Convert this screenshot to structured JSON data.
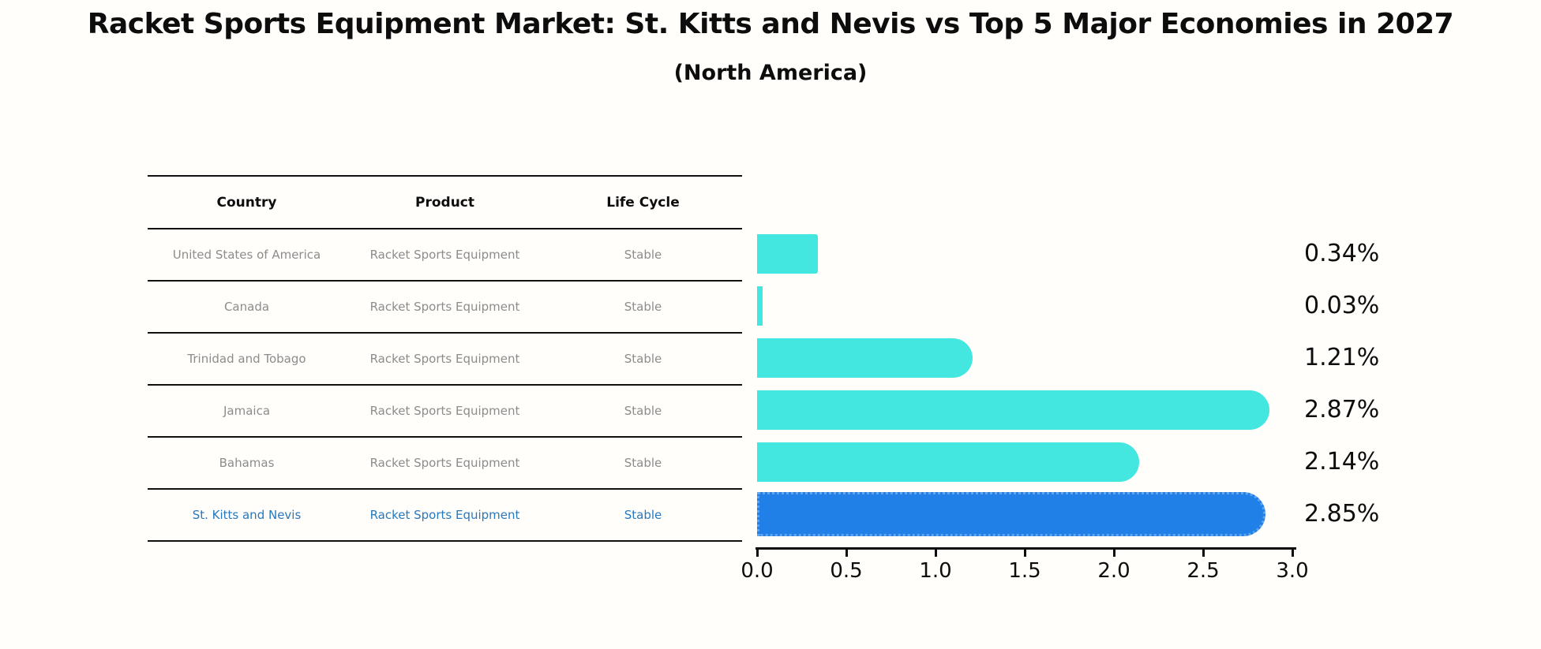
{
  "title": "Racket Sports Equipment Market: St. Kitts and Nevis vs Top 5 Major Economies in 2027",
  "subtitle": "(North America)",
  "table": {
    "headers": [
      "Country",
      "Product",
      "Life Cycle"
    ],
    "rows": [
      {
        "country": "United States of America",
        "product": "Racket Sports Equipment",
        "life_cycle": "Stable",
        "highlighted": false
      },
      {
        "country": "Canada",
        "product": "Racket Sports Equipment",
        "life_cycle": "Stable",
        "highlighted": false
      },
      {
        "country": "Trinidad and Tobago",
        "product": "Racket Sports Equipment",
        "life_cycle": "Stable",
        "highlighted": false
      },
      {
        "country": "Jamaica",
        "product": "Racket Sports Equipment",
        "life_cycle": "Stable",
        "highlighted": false
      },
      {
        "country": "Bahamas",
        "product": "Racket Sports Equipment",
        "life_cycle": "Stable",
        "highlighted": false
      },
      {
        "country": "St. Kitts and Nevis",
        "product": "Racket Sports Equipment",
        "life_cycle": "Stable",
        "highlighted": true
      }
    ]
  },
  "chart_data": {
    "type": "bar",
    "orientation": "horizontal",
    "title": "Racket Sports Equipment Market: St. Kitts and Nevis vs Top 5 Major Economies in 2027 (North America)",
    "categories": [
      "United States of America",
      "Canada",
      "Trinidad and Tobago",
      "Jamaica",
      "Bahamas",
      "St. Kitts and Nevis"
    ],
    "values": [
      0.34,
      0.03,
      1.21,
      2.87,
      2.14,
      2.85
    ],
    "value_labels": [
      "0.34%",
      "0.03%",
      "1.21%",
      "2.87%",
      "2.14%",
      "2.85%"
    ],
    "x_ticks": [
      "0.0",
      "0.5",
      "1.0",
      "1.5",
      "2.0",
      "2.5",
      "3.0"
    ],
    "xlim": [
      0,
      3.0
    ],
    "grid": "off",
    "legend": "none",
    "highlight_index": 5
  },
  "colors": {
    "bar_cyan": "#44e7df",
    "bar_blue": "#2080e8",
    "highlight_dotted_edge": "#5fa5f0",
    "highlight_text": "#2878be",
    "table_text": "#8c8c8c",
    "header_text": "#0d0d0d"
  }
}
